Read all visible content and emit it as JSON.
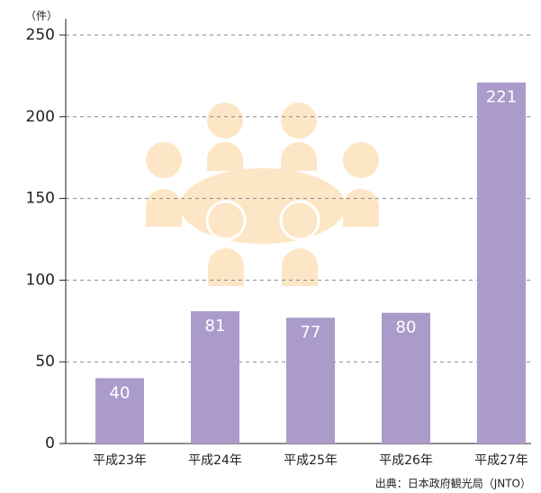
{
  "chart_data": {
    "type": "bar",
    "unit_label": "（件）",
    "source": "出典：日本政府観光局（JNTO）",
    "categories": [
      "平成23年",
      "平成24年",
      "平成25年",
      "平成26年",
      "平成27年"
    ],
    "values": [
      40,
      81,
      77,
      80,
      221
    ],
    "color": "#ab9bcb",
    "ylim": [
      0,
      250
    ],
    "yticks": [
      0,
      50,
      100,
      150,
      200,
      250
    ],
    "grid": true
  }
}
